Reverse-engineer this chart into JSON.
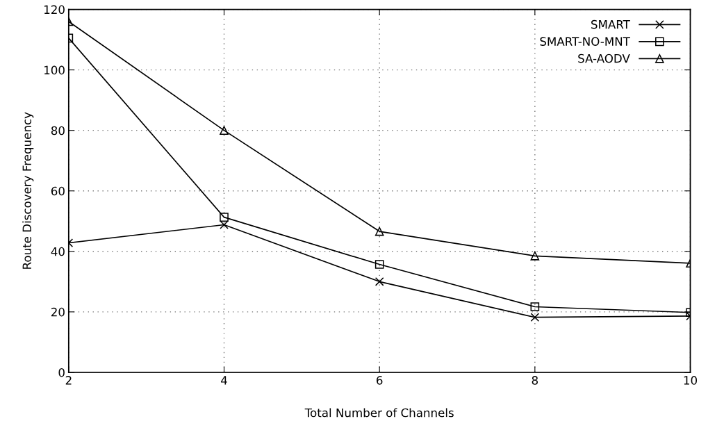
{
  "chart_data": {
    "type": "line",
    "xlabel": "Total Number of Channels",
    "ylabel": "Route Discovery Frequency",
    "x": [
      2,
      4,
      6,
      8,
      10
    ],
    "series": [
      {
        "name": "SMART",
        "color": "#000000",
        "marker": "cross",
        "values": [
          42.8,
          48.8,
          30.0,
          18.2,
          18.6
        ]
      },
      {
        "name": "SMART-NO-MNT",
        "color": "#000000",
        "marker": "square",
        "values": [
          110.5,
          51.3,
          35.7,
          21.7,
          19.8
        ]
      },
      {
        "name": "SA-AODV",
        "color": "#000000",
        "marker": "triangle",
        "values": [
          116.0,
          80.0,
          46.6,
          38.5,
          36.1
        ]
      }
    ],
    "xlim": [
      2,
      10
    ],
    "xticks": [
      2,
      4,
      6,
      8,
      10
    ],
    "ylim": [
      0,
      120
    ],
    "yticks": [
      0,
      20,
      40,
      60,
      80,
      100,
      120
    ],
    "grid": true,
    "legend": "top right",
    "line_style": "solid"
  }
}
